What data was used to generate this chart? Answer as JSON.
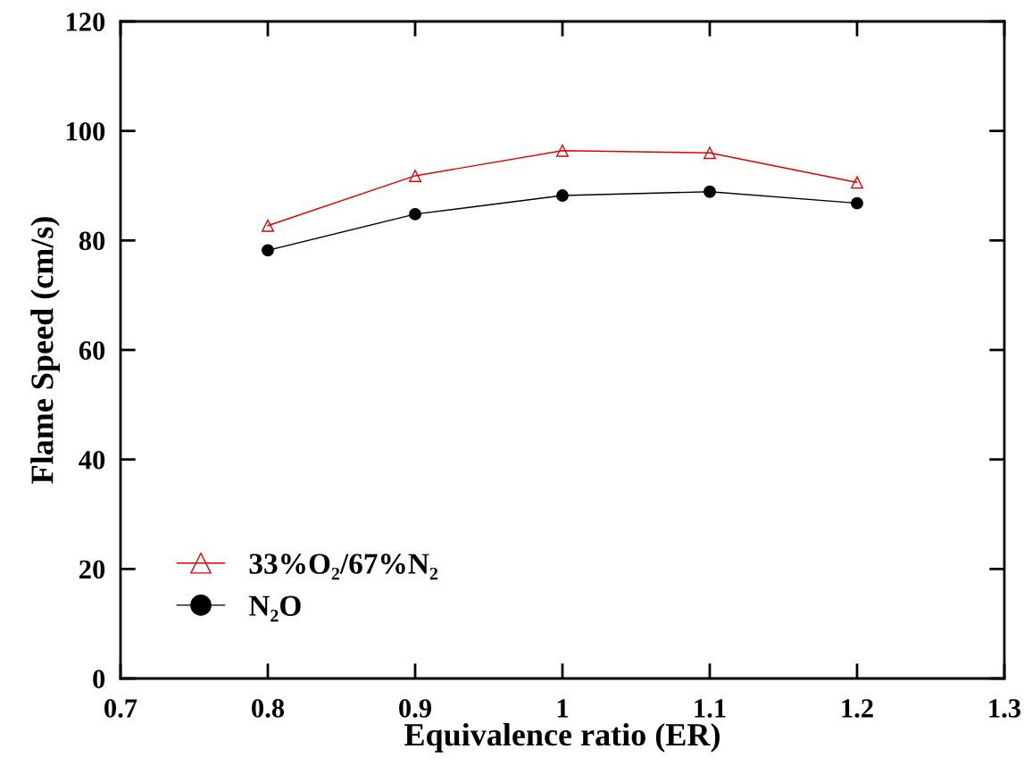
{
  "chart_data": {
    "type": "line",
    "xlabel": "Equivalence ratio (ER)",
    "ylabel": "Flame Speed (cm/s)",
    "x": [
      0.8,
      0.9,
      1.0,
      1.1,
      1.2
    ],
    "series": [
      {
        "name": "33%O₂/67%N₂",
        "color": "#e00000",
        "marker": "triangle",
        "values": [
          82.7,
          91.8,
          96.4,
          96.0,
          90.6
        ]
      },
      {
        "name": "N₂O",
        "color": "#000000",
        "marker": "circle",
        "values": [
          78.2,
          84.8,
          88.2,
          88.9,
          86.8
        ]
      }
    ],
    "xlim": [
      0.7,
      1.3
    ],
    "xticks": [
      0.7,
      0.8,
      0.9,
      {
        "value": 1.0,
        "label": "1"
      },
      1.1,
      1.2,
      1.3
    ],
    "ylim": [
      0,
      120
    ],
    "yticks": [
      0,
      20,
      40,
      60,
      80,
      100,
      120
    ],
    "grid": false,
    "legend": "bottom left",
    "line_style": "solid"
  }
}
